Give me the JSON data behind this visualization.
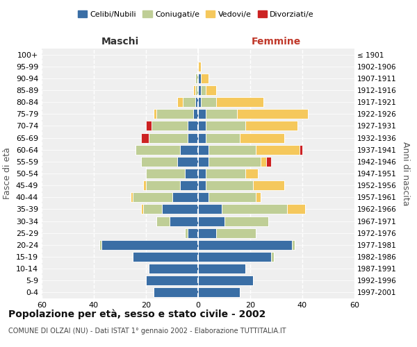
{
  "age_groups": [
    "0-4",
    "5-9",
    "10-14",
    "15-19",
    "20-24",
    "25-29",
    "30-34",
    "35-39",
    "40-44",
    "45-49",
    "50-54",
    "55-59",
    "60-64",
    "65-69",
    "70-74",
    "75-79",
    "80-84",
    "85-89",
    "90-94",
    "95-99",
    "100+"
  ],
  "birth_years": [
    "1997-2001",
    "1992-1996",
    "1987-1991",
    "1982-1986",
    "1977-1981",
    "1972-1976",
    "1967-1971",
    "1962-1966",
    "1957-1961",
    "1952-1956",
    "1947-1951",
    "1942-1946",
    "1937-1941",
    "1932-1936",
    "1927-1931",
    "1922-1926",
    "1917-1921",
    "1912-1916",
    "1907-1911",
    "1902-1906",
    "≤ 1901"
  ],
  "colors": {
    "celibe": "#3A6EA5",
    "coniugato": "#BFCE96",
    "vedovo": "#F5C85C",
    "divorziato": "#CC2222"
  },
  "males": {
    "celibe": [
      17,
      20,
      19,
      25,
      37,
      4,
      11,
      14,
      10,
      7,
      5,
      8,
      7,
      4,
      4,
      2,
      1,
      0,
      0,
      0,
      0
    ],
    "coniugato": [
      0,
      0,
      0,
      0,
      1,
      1,
      5,
      7,
      15,
      13,
      15,
      14,
      17,
      15,
      14,
      14,
      5,
      1,
      1,
      0,
      0
    ],
    "vedovo": [
      0,
      0,
      0,
      0,
      0,
      0,
      0,
      1,
      1,
      1,
      0,
      0,
      0,
      0,
      0,
      1,
      2,
      1,
      0,
      0,
      0
    ],
    "divorziato": [
      0,
      0,
      0,
      0,
      0,
      0,
      0,
      0,
      0,
      0,
      0,
      0,
      0,
      3,
      2,
      0,
      0,
      0,
      0,
      0,
      0
    ]
  },
  "females": {
    "celibe": [
      16,
      21,
      18,
      28,
      36,
      7,
      10,
      9,
      4,
      3,
      3,
      4,
      4,
      3,
      3,
      3,
      1,
      1,
      1,
      0,
      0
    ],
    "coniugato": [
      0,
      0,
      0,
      1,
      1,
      15,
      17,
      25,
      18,
      18,
      15,
      20,
      18,
      13,
      15,
      12,
      6,
      2,
      0,
      0,
      0
    ],
    "vedovo": [
      0,
      0,
      0,
      0,
      0,
      0,
      0,
      7,
      2,
      12,
      5,
      2,
      17,
      17,
      20,
      27,
      18,
      4,
      3,
      1,
      0
    ],
    "divorziato": [
      0,
      0,
      0,
      0,
      0,
      0,
      0,
      0,
      0,
      0,
      0,
      2,
      1,
      0,
      0,
      0,
      0,
      0,
      0,
      0,
      0
    ]
  },
  "xlim": 60,
  "title": "Popolazione per età, sesso e stato civile - 2002",
  "subtitle": "COMUNE DI OLZAI (NU) - Dati ISTAT 1° gennaio 2002 - Elaborazione TUTTITALIA.IT",
  "ylabel_left": "Fasce di età",
  "ylabel_right": "Anni di nascita",
  "maschi_label": "Maschi",
  "femmine_label": "Femmine",
  "legend_labels": [
    "Celibi/Nubili",
    "Coniugati/e",
    "Vedovi/e",
    "Divorziati/e"
  ],
  "bg_color": "#efefef"
}
